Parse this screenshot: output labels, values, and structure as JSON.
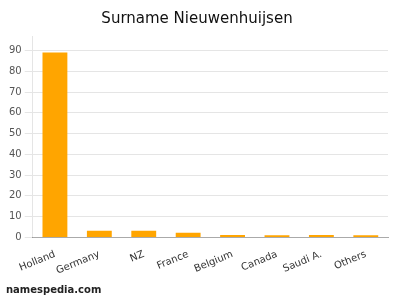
{
  "chart_data": {
    "type": "bar",
    "title": "Surname Nieuwenhuijsen",
    "categories": [
      "Holland",
      "Germany",
      "NZ",
      "France",
      "Belgium",
      "Canada",
      "Saudi A.",
      "Others"
    ],
    "values": [
      89,
      3.2,
      3.2,
      2.2,
      1.1,
      1.0,
      1.1,
      1.0
    ],
    "color": "#FFA500",
    "ylim": [
      0,
      97
    ],
    "yticks": [
      0,
      10,
      20,
      30,
      40,
      50,
      60,
      70,
      80,
      90
    ],
    "grid": true,
    "annotation": "namespedia.com"
  }
}
